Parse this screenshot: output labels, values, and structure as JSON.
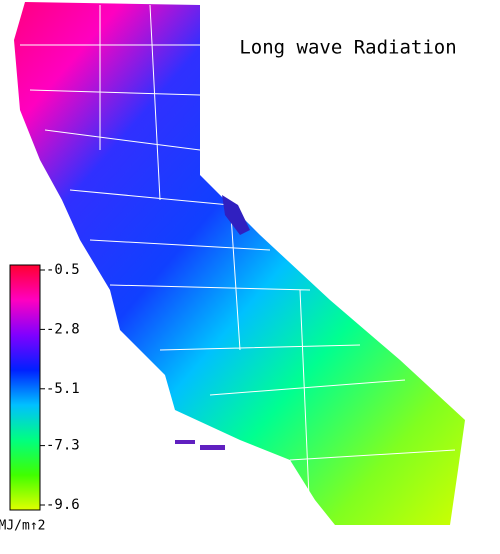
{
  "chart_data": {
    "type": "map",
    "title": "Long wave Radiation",
    "colorbar": {
      "range": [
        -0.5,
        -9.6
      ],
      "ticks": [
        -0.5,
        -2.8,
        -5.1,
        -7.3,
        -9.6
      ],
      "label": "MJ/m↑2",
      "colors": [
        "#ff0030",
        "#ff00c0",
        "#8000ff",
        "#0020ff",
        "#00c0ff",
        "#00ff80",
        "#40ff00",
        "#e0ff00"
      ]
    }
  }
}
